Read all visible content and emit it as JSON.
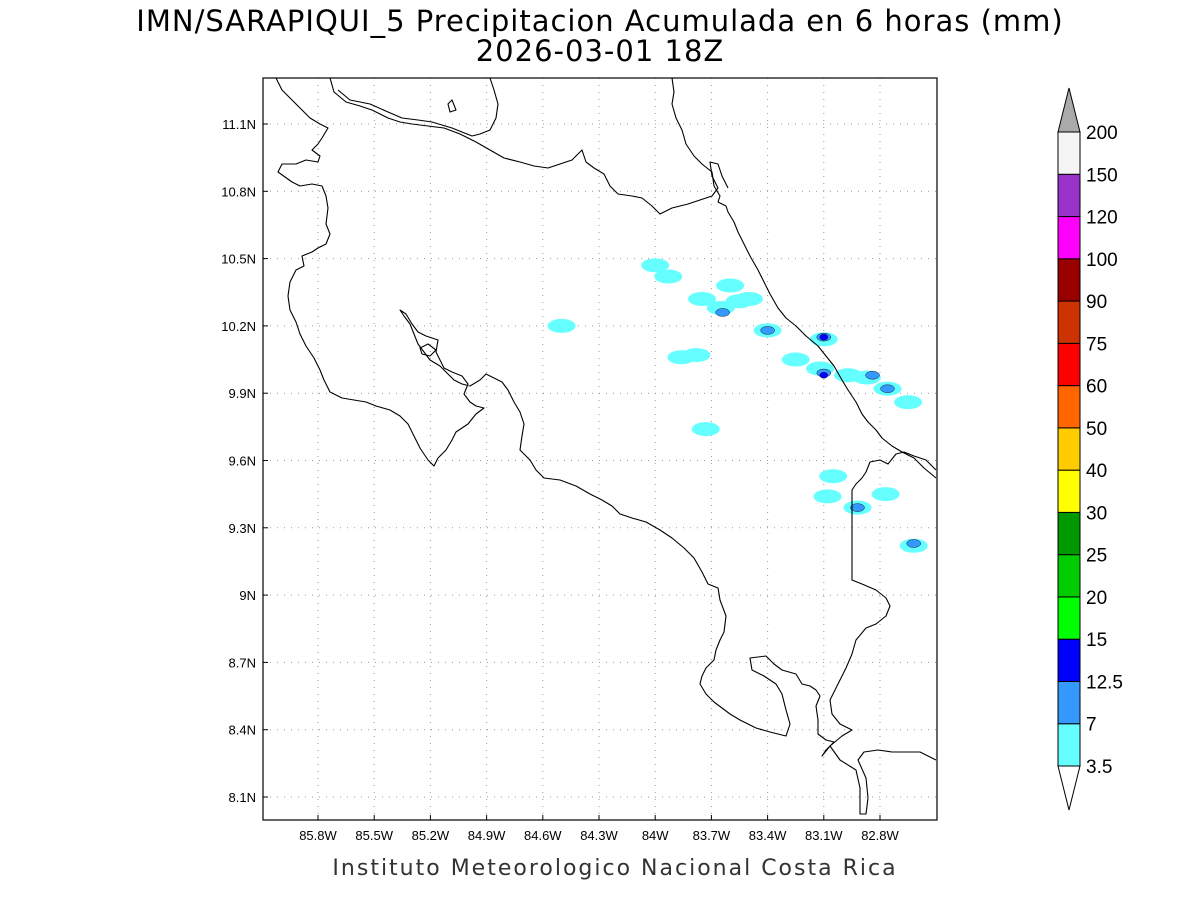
{
  "title_line1": "IMN/SARAPIQUI_5 Precipitacion Acumulada en 6 horas (mm)",
  "title_line2": "2026-03-01 18Z",
  "footer": "Instituto Meteorologico Nacional Costa Rica",
  "lon_ticks": [
    {
      "lon": -85.8,
      "label": "85.8W"
    },
    {
      "lon": -85.5,
      "label": "85.5W"
    },
    {
      "lon": -85.2,
      "label": "85.2W"
    },
    {
      "lon": -84.9,
      "label": "84.9W"
    },
    {
      "lon": -84.6,
      "label": "84.6W"
    },
    {
      "lon": -84.3,
      "label": "84.3W"
    },
    {
      "lon": -84.0,
      "label": "84W"
    },
    {
      "lon": -83.7,
      "label": "83.7W"
    },
    {
      "lon": -83.4,
      "label": "83.4W"
    },
    {
      "lon": -83.1,
      "label": "83.1W"
    },
    {
      "lon": -82.8,
      "label": "82.8W"
    }
  ],
  "lat_ticks": [
    {
      "lat": 11.1,
      "label": "11.1N"
    },
    {
      "lat": 10.8,
      "label": "10.8N"
    },
    {
      "lat": 10.5,
      "label": "10.5N"
    },
    {
      "lat": 10.2,
      "label": "10.2N"
    },
    {
      "lat": 9.9,
      "label": "9.9N"
    },
    {
      "lat": 9.6,
      "label": "9.6N"
    },
    {
      "lat": 9.3,
      "label": "9.3N"
    },
    {
      "lat": 9.0,
      "label": "9N"
    },
    {
      "lat": 8.7,
      "label": "8.7N"
    },
    {
      "lat": 8.4,
      "label": "8.4N"
    },
    {
      "lat": 8.1,
      "label": "8.1N"
    }
  ],
  "colorbar": {
    "bins_bottom_to_top": [
      {
        "color": "#66ffff"
      },
      {
        "color": "#3399ff"
      },
      {
        "color": "#0000ff"
      },
      {
        "color": "#00ff00"
      },
      {
        "color": "#00cc00"
      },
      {
        "color": "#009900"
      },
      {
        "color": "#ffff00"
      },
      {
        "color": "#ffcc00"
      },
      {
        "color": "#ff6600"
      },
      {
        "color": "#ff0000"
      },
      {
        "color": "#cc3300"
      },
      {
        "color": "#990000"
      },
      {
        "color": "#ff00ff"
      },
      {
        "color": "#9933cc"
      },
      {
        "color": "#f5f5f5"
      }
    ],
    "over_color": "#aaaaaa",
    "under_color": "#ffffff",
    "labels": [
      "3.5",
      "7",
      "12.5",
      "15",
      "20",
      "25",
      "30",
      "40",
      "50",
      "60",
      "75",
      "90",
      "100",
      "120",
      "150",
      "200"
    ]
  },
  "precip_cells": [
    {
      "lon": -84.0,
      "lat": 10.47,
      "level": 1
    },
    {
      "lon": -83.93,
      "lat": 10.42,
      "level": 1
    },
    {
      "lon": -84.5,
      "lat": 10.2,
      "level": 1
    },
    {
      "lon": -83.75,
      "lat": 10.32,
      "level": 1
    },
    {
      "lon": -83.65,
      "lat": 10.28,
      "level": 1
    },
    {
      "lon": -83.55,
      "lat": 10.31,
      "level": 1
    },
    {
      "lon": -83.5,
      "lat": 10.32,
      "level": 1
    },
    {
      "lon": -83.64,
      "lat": 10.26,
      "level": 2
    },
    {
      "lon": -83.6,
      "lat": 10.38,
      "level": 1
    },
    {
      "lon": -83.4,
      "lat": 10.18,
      "level": 1
    },
    {
      "lon": -83.4,
      "lat": 10.18,
      "level": 2
    },
    {
      "lon": -83.86,
      "lat": 10.06,
      "level": 1
    },
    {
      "lon": -83.78,
      "lat": 10.07,
      "level": 1
    },
    {
      "lon": -83.25,
      "lat": 10.05,
      "level": 1
    },
    {
      "lon": -83.1,
      "lat": 10.14,
      "level": 1
    },
    {
      "lon": -83.1,
      "lat": 10.15,
      "level": 2
    },
    {
      "lon": -83.1,
      "lat": 10.15,
      "level": 3
    },
    {
      "lon": -83.12,
      "lat": 10.01,
      "level": 1
    },
    {
      "lon": -83.1,
      "lat": 9.99,
      "level": 2
    },
    {
      "lon": -83.1,
      "lat": 9.98,
      "level": 3
    },
    {
      "lon": -82.97,
      "lat": 9.98,
      "level": 1
    },
    {
      "lon": -82.87,
      "lat": 9.97,
      "level": 1
    },
    {
      "lon": -82.84,
      "lat": 9.98,
      "level": 2
    },
    {
      "lon": -82.76,
      "lat": 9.92,
      "level": 1
    },
    {
      "lon": -82.76,
      "lat": 9.92,
      "level": 2
    },
    {
      "lon": -82.65,
      "lat": 9.86,
      "level": 1
    },
    {
      "lon": -83.05,
      "lat": 9.53,
      "level": 1
    },
    {
      "lon": -83.08,
      "lat": 9.44,
      "level": 1
    },
    {
      "lon": -82.92,
      "lat": 9.39,
      "level": 1
    },
    {
      "lon": -82.92,
      "lat": 9.39,
      "level": 2
    },
    {
      "lon": -82.77,
      "lat": 9.45,
      "level": 1
    },
    {
      "lon": -82.62,
      "lat": 9.22,
      "level": 1
    },
    {
      "lon": -82.62,
      "lat": 9.23,
      "level": 2
    },
    {
      "lon": -83.73,
      "lat": 9.74,
      "level": 1
    }
  ]
}
